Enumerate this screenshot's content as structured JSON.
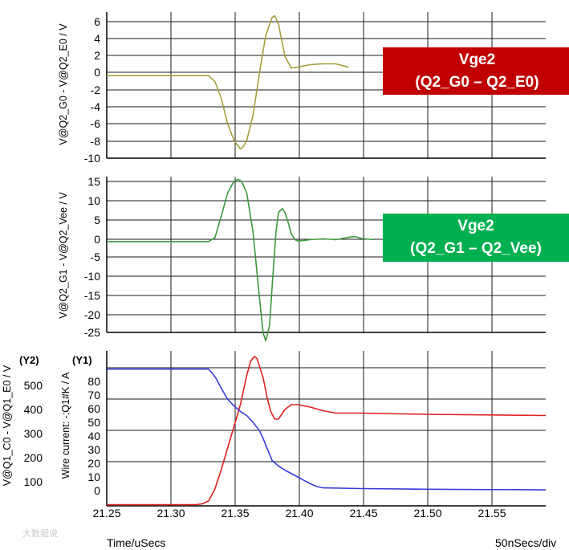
{
  "chart_data": [
    {
      "type": "line",
      "ylabel": "V@Q2_G0 - V@Q2_E0 / V",
      "ylim": [
        -10,
        7
      ],
      "yticks": [
        "6",
        "4",
        "2",
        "0",
        "-2",
        "-4",
        "-6",
        "-8",
        "-10"
      ],
      "series": [
        {
          "name": "Vge2 (Q2_G0 – Q2_E0)",
          "color": "#a3a03c",
          "x": [
            21.25,
            21.33,
            21.335,
            21.34,
            21.345,
            21.35,
            21.355,
            21.357,
            21.36,
            21.365,
            21.37,
            21.375,
            21.38,
            21.382,
            21.385,
            21.39,
            21.395,
            21.4,
            21.41,
            21.42,
            21.43,
            21.44
          ],
          "y": [
            -0.3,
            -0.3,
            -1.0,
            -3.0,
            -6.0,
            -8.0,
            -9.0,
            -8.8,
            -8.0,
            -5.0,
            0.0,
            4.5,
            6.6,
            6.8,
            5.8,
            2.0,
            0.6,
            0.7,
            1.0,
            1.1,
            1.1,
            0.7
          ]
        }
      ]
    },
    {
      "type": "line",
      "ylabel": "V@Q2_G1 - V@Q2_Vee / V",
      "ylim": [
        -26,
        16
      ],
      "yticks": [
        "15",
        "10",
        "5",
        "0",
        "-5",
        "-10",
        "-15",
        "-20",
        "-25"
      ],
      "series": [
        {
          "name": "Vge2 (Q2_G1 – Q2_Vee)",
          "color": "#3a9a3a",
          "x": [
            21.25,
            21.33,
            21.335,
            21.34,
            21.345,
            21.35,
            21.353,
            21.356,
            21.36,
            21.365,
            21.37,
            21.373,
            21.375,
            21.378,
            21.38,
            21.383,
            21.385,
            21.388,
            21.39,
            21.393,
            21.395,
            21.398,
            21.4,
            21.405,
            21.41,
            21.42,
            21.43,
            21.44,
            21.445,
            21.45,
            21.46
          ],
          "y": [
            -0.5,
            -0.5,
            0.5,
            6,
            12,
            15,
            15.5,
            15,
            12,
            2,
            -15,
            -24,
            -26,
            -22,
            -12,
            2,
            7,
            8,
            7,
            4,
            1.5,
            0,
            -0.3,
            -0.2,
            0,
            0.2,
            0,
            0.6,
            0.8,
            0.3,
            0
          ]
        }
      ]
    },
    {
      "type": "line",
      "ylabel": "V@Q1_C0 - V@Q1_E0 / V",
      "ylabel2": "Wire current: -:Q1#K / A",
      "y2_tag": "(Y2)",
      "y1_tag": "(Y1)",
      "xlabel": "Time/uSecs",
      "xscale_note": "50nSecs/div",
      "xlim": [
        21.25,
        21.595
      ],
      "xticks": [
        "21.25",
        "21.30",
        "21.35",
        "21.40",
        "21.45",
        "21.50",
        "21.55"
      ],
      "yticks_v": [
        "500",
        "400",
        "300",
        "200",
        "100"
      ],
      "yticks_a": [
        "80",
        "70",
        "60",
        "50",
        "40",
        "30",
        "20",
        "10",
        "0"
      ],
      "series": [
        {
          "name": "V@Q1_C0 - V@Q1_E0",
          "color": "#e02020",
          "axis": "Y2",
          "x": [
            21.25,
            21.32,
            21.325,
            21.33,
            21.335,
            21.34,
            21.345,
            21.35,
            21.355,
            21.36,
            21.363,
            21.366,
            21.368,
            21.37,
            21.373,
            21.376,
            21.379,
            21.382,
            21.385,
            21.39,
            21.395,
            21.4,
            21.41,
            21.42,
            21.43,
            21.45,
            21.5,
            21.595
          ],
          "y": [
            5,
            5,
            8,
            20,
            70,
            150,
            240,
            330,
            420,
            540,
            600,
            620,
            612,
            580,
            530,
            450,
            390,
            360,
            360,
            400,
            420,
            420,
            410,
            395,
            385,
            385,
            380,
            375
          ]
        },
        {
          "name": "Wire current: -:Q1#K",
          "color": "#3a3ad8",
          "axis": "Y1",
          "x": [
            21.25,
            21.33,
            21.333,
            21.336,
            21.34,
            21.345,
            21.35,
            21.355,
            21.36,
            21.365,
            21.37,
            21.373,
            21.376,
            21.38,
            21.385,
            21.39,
            21.4,
            21.41,
            21.415,
            21.42,
            21.45,
            21.5,
            21.595
          ],
          "y": [
            89,
            89,
            86,
            82,
            75,
            67,
            62,
            58,
            55,
            50,
            44,
            38,
            31,
            22,
            18,
            15,
            10,
            5,
            3,
            2,
            1.5,
            1,
            0.5
          ]
        }
      ]
    }
  ],
  "callouts": [
    {
      "line1": "Vge2",
      "line2": "(Q2_G0 – Q2_E0)",
      "bg": "#c00000"
    },
    {
      "line1": "Vge2",
      "line2": "(Q2_G1 – Q2_Vee)",
      "bg": "#00b050"
    }
  ],
  "watermark": "大数据说"
}
